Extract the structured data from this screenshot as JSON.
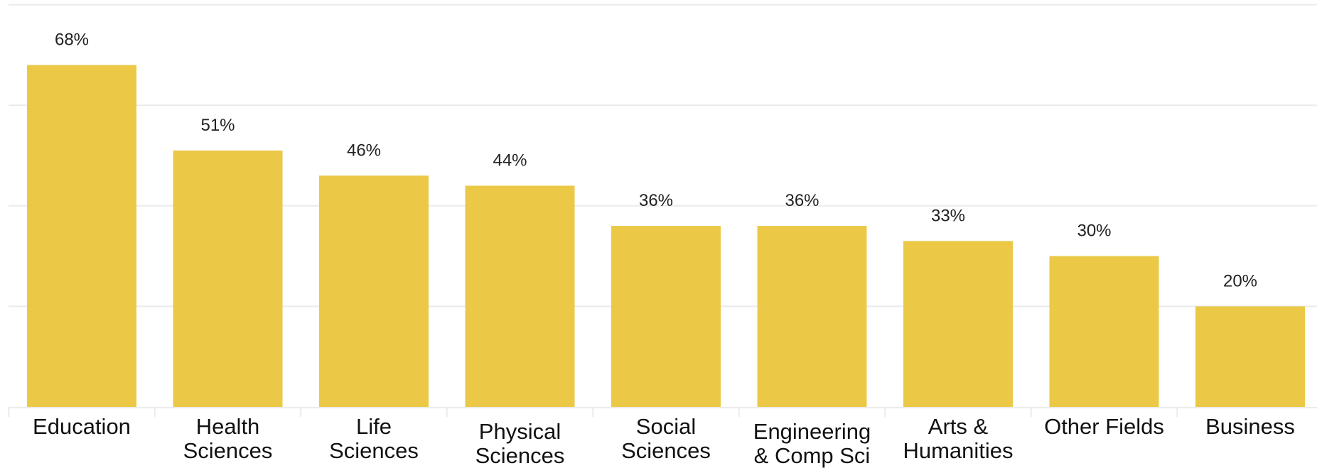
{
  "chart_data": {
    "type": "bar",
    "title": "",
    "xlabel": "",
    "ylabel": "",
    "ylim": [
      0,
      80
    ],
    "grid": true,
    "legend": "none",
    "bar_color": "#EBC947",
    "categories": [
      [
        "Education"
      ],
      [
        "Health",
        "Sciences"
      ],
      [
        "Life",
        "Sciences"
      ],
      [
        "Physical",
        "Sciences"
      ],
      [
        "Social",
        "Sciences"
      ],
      [
        "Engineering",
        "& Comp Sci"
      ],
      [
        "Arts &",
        "Humanities"
      ],
      [
        "Other Fields"
      ],
      [
        "Business"
      ]
    ],
    "values": [
      68,
      51,
      46,
      44,
      36,
      36,
      33,
      30,
      20
    ],
    "value_labels": [
      "68%",
      "51%",
      "46%",
      "44%",
      "36%",
      "36%",
      "33%",
      "30%",
      "20%"
    ]
  }
}
